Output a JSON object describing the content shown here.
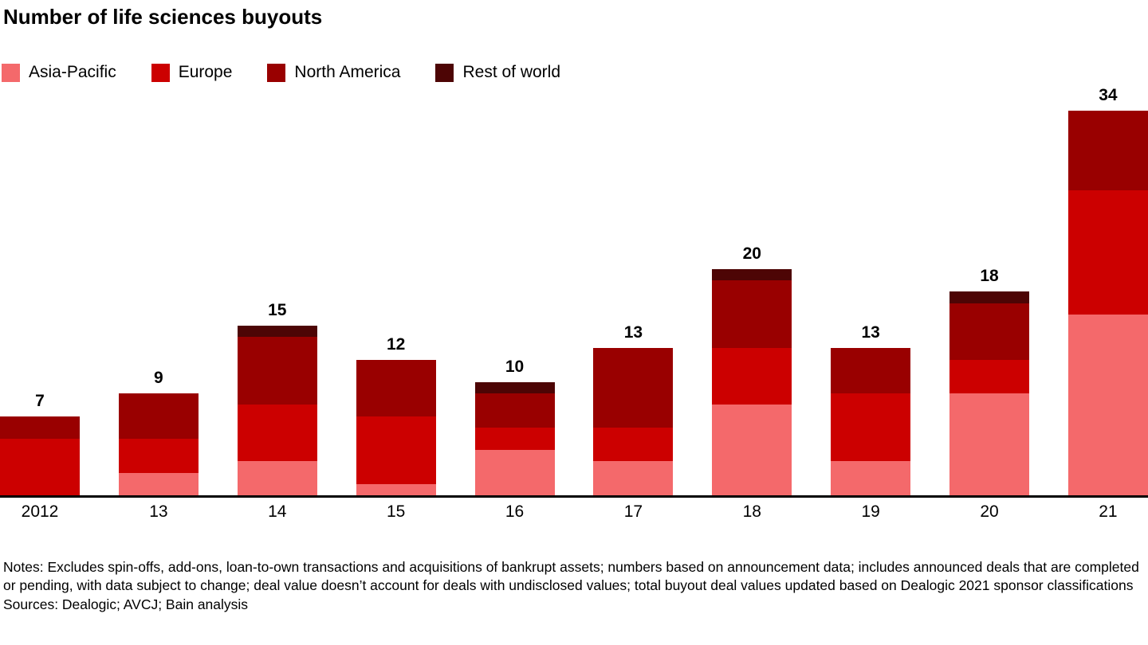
{
  "chart_data": {
    "type": "bar",
    "stacked": true,
    "title": "Number of life sciences buyouts",
    "xlabel": "",
    "ylabel": "",
    "ylim": [
      0,
      36
    ],
    "grid": false,
    "legend_position": "top-left",
    "value_labels": "total shown above each bar",
    "categories": [
      "2012",
      "13",
      "14",
      "15",
      "16",
      "17",
      "18",
      "19",
      "20",
      "21"
    ],
    "totals": [
      7,
      9,
      15,
      12,
      10,
      13,
      20,
      13,
      18,
      34
    ],
    "series": [
      {
        "name": "Asia-Pacific",
        "color": "#F4696B",
        "values": [
          0,
          2,
          3,
          1,
          4,
          3,
          8,
          3,
          9,
          16
        ]
      },
      {
        "name": "Europe",
        "color": "#CC0000",
        "values": [
          5,
          3,
          5,
          6,
          2,
          3,
          5,
          6,
          3,
          11
        ]
      },
      {
        "name": "North America",
        "color": "#990000",
        "values": [
          2,
          4,
          6,
          5,
          3,
          7,
          6,
          4,
          5,
          7
        ]
      },
      {
        "name": "Rest of world",
        "color": "#4D0505",
        "values": [
          0,
          0,
          1,
          0,
          1,
          0,
          1,
          0,
          1,
          0
        ]
      }
    ]
  },
  "colors": {
    "axis": "#000000",
    "text": "#000000",
    "background": "#FFFFFF"
  },
  "footer": {
    "notes": "Notes: Excludes spin-offs, add-ons, loan-to-own transactions and acquisitions of bankrupt assets; numbers based on announcement data; includes announced deals that are completed or pending, with data subject to change; deal value doesn’t account for deals with undisclosed values; total buyout deal values updated based on Dealogic 2021 sponsor classifications",
    "sources": "Sources: Dealogic; AVCJ; Bain analysis"
  }
}
